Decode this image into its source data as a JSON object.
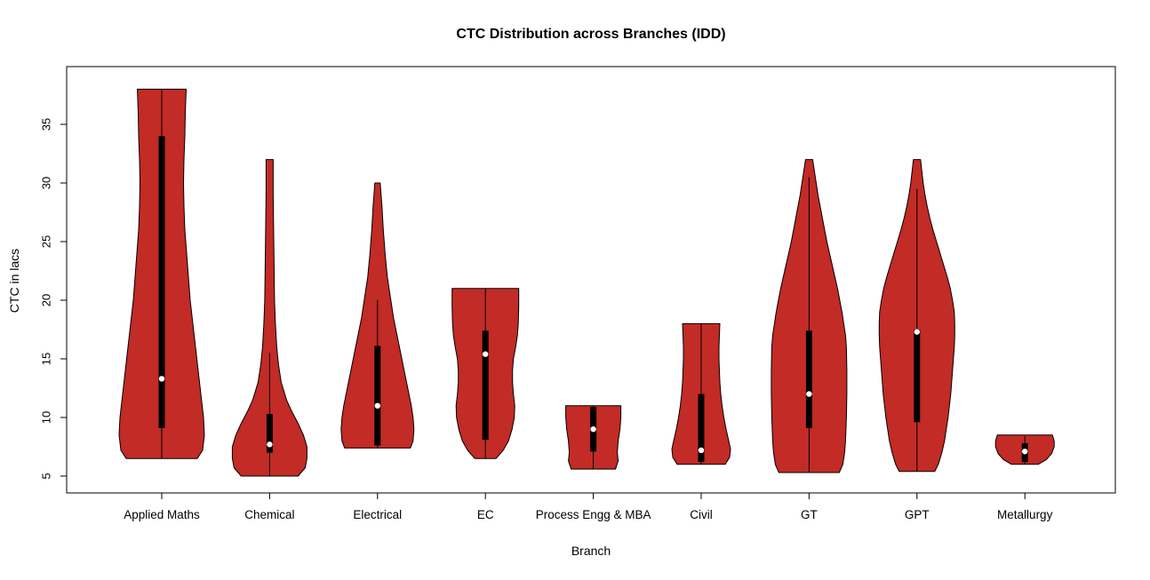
{
  "chart_data": {
    "type": "violin",
    "title": "CTC Distribution across Branches (IDD)",
    "xlabel": "Branch",
    "ylabel": "CTC in lacs",
    "ylim": [
      3.56,
      39.92
    ],
    "yticks": [
      5,
      10,
      15,
      20,
      25,
      30,
      35
    ],
    "categories": [
      "Applied Maths",
      "Chemical",
      "Electrical",
      "EC",
      "Process Engg & MBA",
      "Civil",
      "GT",
      "GPT",
      "Metallurgy"
    ],
    "legend": "none",
    "grid": "off",
    "violin_fill": "#C22B26",
    "violin_stroke": "#000000",
    "box_color": "#000000",
    "median_dot_color": "#FFFFFF",
    "violins": [
      {
        "label": "Applied Maths",
        "stats": {
          "min": 6.5,
          "max": 38,
          "q1": 9.1,
          "median": 13.3,
          "q3": 34,
          "whisker_low": 6.5,
          "whisker_high": 38
        },
        "shape": [
          [
            6.5,
            40
          ],
          [
            7.2,
            46
          ],
          [
            8.5,
            48
          ],
          [
            10,
            47
          ],
          [
            12,
            44
          ],
          [
            14,
            41
          ],
          [
            16,
            38
          ],
          [
            18,
            35
          ],
          [
            20,
            32
          ],
          [
            22,
            30
          ],
          [
            24,
            28
          ],
          [
            26,
            26
          ],
          [
            28,
            25
          ],
          [
            30,
            24.5
          ],
          [
            32,
            25
          ],
          [
            34,
            26
          ],
          [
            36,
            26.5
          ],
          [
            38,
            27.5
          ]
        ]
      },
      {
        "label": "Chemical",
        "stats": {
          "min": 5,
          "max": 32,
          "q1": 7,
          "median": 7.7,
          "q3": 10.3,
          "whisker_low": 5,
          "whisker_high": 15.5
        },
        "shape": [
          [
            5,
            32
          ],
          [
            5.7,
            40
          ],
          [
            6.5,
            42
          ],
          [
            7.5,
            42
          ],
          [
            8.5,
            38
          ],
          [
            9.5,
            32
          ],
          [
            10.5,
            25
          ],
          [
            11.5,
            19
          ],
          [
            13,
            13
          ],
          [
            14.5,
            10
          ],
          [
            16,
            8
          ],
          [
            18,
            6.5
          ],
          [
            20,
            5.5
          ],
          [
            23,
            5
          ],
          [
            26,
            4.5
          ],
          [
            29,
            4
          ],
          [
            32,
            4
          ]
        ]
      },
      {
        "label": "Electrical",
        "stats": {
          "min": 7.4,
          "max": 30,
          "q1": 7.6,
          "median": 11,
          "q3": 16.1,
          "whisker_low": 7.4,
          "whisker_high": 20
        },
        "shape": [
          [
            7.4,
            37
          ],
          [
            8,
            40
          ],
          [
            9,
            41
          ],
          [
            10,
            40
          ],
          [
            11,
            38
          ],
          [
            12.5,
            34
          ],
          [
            14,
            30
          ],
          [
            15.5,
            26
          ],
          [
            17,
            22
          ],
          [
            18.5,
            18
          ],
          [
            20,
            15
          ],
          [
            22,
            11
          ],
          [
            24,
            8.5
          ],
          [
            26,
            6.5
          ],
          [
            28,
            5
          ],
          [
            30,
            3
          ]
        ]
      },
      {
        "label": "EC",
        "stats": {
          "min": 6.5,
          "max": 21,
          "q1": 8.1,
          "median": 15.4,
          "q3": 17.4,
          "whisker_low": 6.5,
          "whisker_high": 21
        },
        "shape": [
          [
            6.5,
            12
          ],
          [
            7.2,
            20
          ],
          [
            8,
            26
          ],
          [
            9,
            30
          ],
          [
            10,
            32.5
          ],
          [
            11,
            33
          ],
          [
            12,
            31.5
          ],
          [
            13,
            30.5
          ],
          [
            14,
            30.5
          ],
          [
            15,
            31.5
          ],
          [
            16,
            34
          ],
          [
            17,
            36
          ],
          [
            18,
            37
          ],
          [
            19.5,
            37.5
          ],
          [
            21,
            37.5
          ]
        ]
      },
      {
        "label": "Process Engg & MBA",
        "stats": {
          "min": 5.6,
          "max": 11,
          "q1": 7.1,
          "median": 9,
          "q3": 10.9,
          "whisker_low": 5.6,
          "whisker_high": 11
        },
        "shape": [
          [
            5.6,
            25
          ],
          [
            6.3,
            28
          ],
          [
            7,
            27
          ],
          [
            8,
            28
          ],
          [
            9,
            30
          ],
          [
            10,
            31
          ],
          [
            11,
            31
          ]
        ]
      },
      {
        "label": "Civil",
        "stats": {
          "min": 6,
          "max": 18,
          "q1": 6.2,
          "median": 7.2,
          "q3": 12,
          "whisker_low": 6,
          "whisker_high": 18
        },
        "shape": [
          [
            6,
            27
          ],
          [
            6.6,
            32
          ],
          [
            7.3,
            33
          ],
          [
            8,
            31
          ],
          [
            9,
            28
          ],
          [
            10,
            25.5
          ],
          [
            11,
            23.5
          ],
          [
            12,
            22
          ],
          [
            13,
            21
          ],
          [
            14,
            20.5
          ],
          [
            15,
            20
          ],
          [
            16,
            20
          ],
          [
            17,
            20.5
          ],
          [
            18,
            21
          ]
        ]
      },
      {
        "label": "GT",
        "stats": {
          "min": 5.3,
          "max": 32,
          "q1": 9.1,
          "median": 12,
          "q3": 17.4,
          "whisker_low": 5.3,
          "whisker_high": 30.5
        },
        "shape": [
          [
            5.3,
            34
          ],
          [
            6,
            38
          ],
          [
            7,
            40
          ],
          [
            8,
            41
          ],
          [
            9,
            41.5
          ],
          [
            10,
            42
          ],
          [
            12,
            42.5
          ],
          [
            14,
            42.5
          ],
          [
            16,
            42
          ],
          [
            17,
            41
          ],
          [
            18,
            39
          ],
          [
            19,
            37
          ],
          [
            20,
            34.5
          ],
          [
            21,
            32
          ],
          [
            22,
            29
          ],
          [
            23,
            26
          ],
          [
            24,
            23
          ],
          [
            25,
            20
          ],
          [
            26,
            17.5
          ],
          [
            27,
            15
          ],
          [
            28,
            12.5
          ],
          [
            29,
            10
          ],
          [
            30,
            8
          ],
          [
            31,
            6
          ],
          [
            32,
            4
          ]
        ]
      },
      {
        "label": "GPT",
        "stats": {
          "min": 5.4,
          "max": 32,
          "q1": 9.6,
          "median": 17.3,
          "q3": 17.5,
          "whisker_low": 5.4,
          "whisker_high": 29.5
        },
        "shape": [
          [
            5.4,
            20
          ],
          [
            6,
            24
          ],
          [
            7,
            28
          ],
          [
            8,
            31
          ],
          [
            9,
            33
          ],
          [
            10,
            35
          ],
          [
            11,
            36.5
          ],
          [
            12,
            38
          ],
          [
            13,
            39
          ],
          [
            14,
            40
          ],
          [
            15,
            41
          ],
          [
            16,
            42
          ],
          [
            17,
            42.5
          ],
          [
            18,
            42.5
          ],
          [
            19,
            42
          ],
          [
            20,
            40
          ],
          [
            21,
            37.5
          ],
          [
            22,
            34
          ],
          [
            23,
            30
          ],
          [
            24,
            26
          ],
          [
            25,
            22
          ],
          [
            26,
            18
          ],
          [
            27,
            14.5
          ],
          [
            28,
            11.5
          ],
          [
            29,
            9
          ],
          [
            30,
            7
          ],
          [
            31,
            5.5
          ],
          [
            32,
            4
          ]
        ]
      },
      {
        "label": "Metallurgy",
        "stats": {
          "min": 6,
          "max": 8.5,
          "q1": 6.2,
          "median": 7.1,
          "q3": 7.8,
          "whisker_low": 6,
          "whisker_high": 8.4
        },
        "shape": [
          [
            6,
            15
          ],
          [
            6.4,
            24
          ],
          [
            6.9,
            30
          ],
          [
            7.5,
            33
          ],
          [
            8,
            33
          ],
          [
            8.5,
            31
          ]
        ]
      }
    ]
  }
}
